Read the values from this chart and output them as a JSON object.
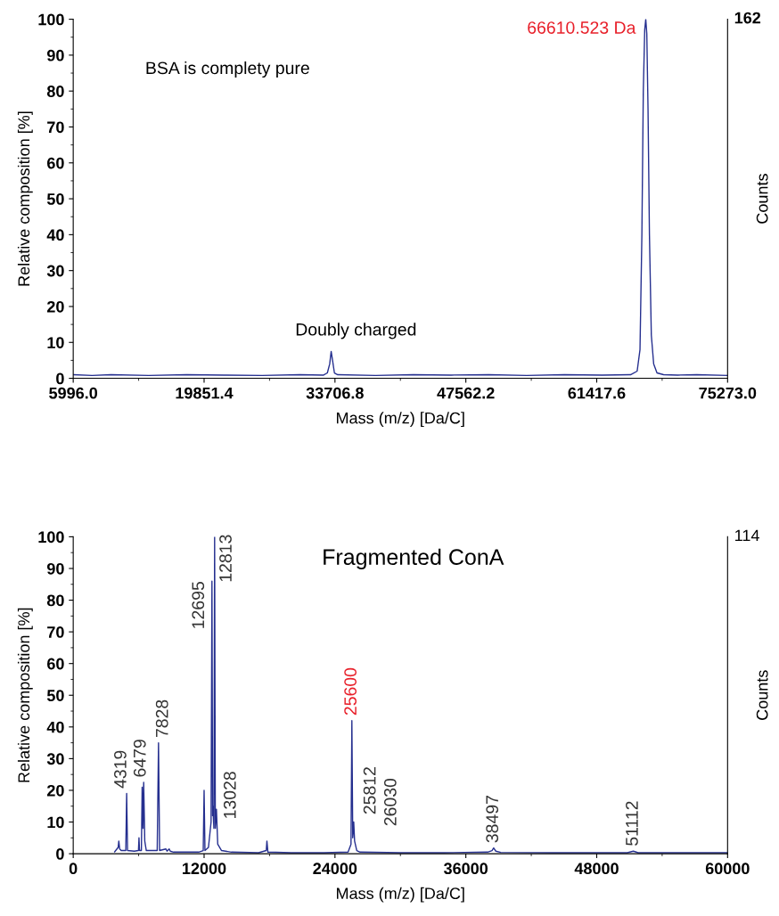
{
  "chart_data": [
    {
      "type": "line",
      "title": "BSA is complety pure",
      "xlabel": "Mass (m/z) [Da/C]",
      "ylabel": "Relative composition [%]",
      "y2label": "Counts",
      "x": [
        5996,
        8000,
        10000,
        14000,
        18000,
        22000,
        26000,
        30000,
        32500,
        32900,
        33150,
        33305,
        33450,
        33650,
        34000,
        38000,
        42000,
        46000,
        50000,
        54000,
        58000,
        62000,
        65000,
        65700,
        66000,
        66200,
        66350,
        66500,
        66610,
        66720,
        66850,
        67000,
        67200,
        67450,
        67800,
        68500,
        70000,
        72000,
        75273
      ],
      "series": [
        {
          "color": "#252f8f",
          "values": [
            1,
            0.8,
            1,
            0.8,
            1,
            0.9,
            0.8,
            1,
            0.9,
            1.5,
            4,
            7.5,
            5,
            1.5,
            1,
            0.8,
            1,
            0.9,
            1,
            0.8,
            1,
            0.9,
            1,
            2,
            8,
            40,
            80,
            97,
            100,
            96,
            75,
            40,
            12,
            4,
            1.5,
            1,
            0.9,
            1,
            0.8
          ]
        }
      ],
      "xlim": [
        5996,
        75273
      ],
      "xticks": [
        {
          "value": 5996,
          "label": "5996.0"
        },
        19851.4,
        33706.8,
        47562.2,
        61417.6,
        {
          "value": 75273,
          "label": "75273.0"
        }
      ],
      "ylim": [
        0,
        100
      ],
      "yticks": [
        0,
        10,
        20,
        30,
        40,
        50,
        60,
        70,
        80,
        90,
        100
      ],
      "annotations": [
        {
          "text": "Doubly charged",
          "x": 33305,
          "y": 7.5
        },
        {
          "text": "66610.523 Da",
          "x": 66610,
          "y": 100
        },
        "162"
      ],
      "grid": false,
      "legend": false,
      "marker": "none",
      "line_style": "solid"
    },
    {
      "type": "line",
      "title": "Fragmented ConA",
      "xlabel": "Mass (m/z) [Da/C]",
      "ylabel": "Relative composition [%]",
      "y2label": "Counts",
      "x": [
        3800,
        4120,
        4180,
        4260,
        4400,
        4820,
        4900,
        4980,
        5600,
        5980,
        6030,
        6080,
        6250,
        6320,
        6400,
        6460,
        6560,
        6700,
        7700,
        7820,
        7920,
        8500,
        8600,
        8800,
        8900,
        9200,
        11500,
        11920,
        12000,
        12080,
        12400,
        12640,
        12720,
        12780,
        12800,
        12900,
        12965,
        13030,
        13130,
        13250,
        13600,
        14500,
        17000,
        17700,
        17760,
        17850,
        20000,
        23000,
        25200,
        25470,
        25550,
        25630,
        25720,
        25800,
        26000,
        26300,
        30000,
        34000,
        38000,
        38400,
        38550,
        38750,
        39200,
        44000,
        50800,
        51360,
        51800,
        56000,
        60000
      ],
      "series": [
        {
          "color": "#252f8f",
          "values": [
            0.6,
            2,
            4,
            1.5,
            1,
            1,
            19,
            1,
            0.8,
            1,
            5,
            1,
            1,
            21,
            8,
            22.5,
            4,
            1,
            1,
            35,
            1,
            1.5,
            0.8,
            1.5,
            0.8,
            0.5,
            0.5,
            1,
            20,
            1,
            2,
            10,
            86,
            12,
            15,
            8,
            100,
            8,
            14,
            3,
            1,
            0.5,
            0.3,
            1,
            4,
            0.5,
            0.3,
            0.3,
            0.5,
            3,
            42,
            5,
            10,
            4,
            1,
            0.5,
            0.3,
            0.3,
            0.5,
            1,
            1.8,
            0.8,
            0.4,
            0.3,
            0.3,
            0.8,
            0.3,
            0.3,
            0.3
          ]
        }
      ],
      "xlim": [
        0,
        60000
      ],
      "xticks": [
        0,
        12000,
        24000,
        36000,
        48000,
        60000
      ],
      "ylim": [
        0,
        100
      ],
      "yticks": [
        0,
        10,
        20,
        30,
        40,
        50,
        60,
        70,
        80,
        90,
        100
      ],
      "annotations": [
        "114",
        {
          "text": "4319",
          "x": 4900,
          "y": 19
        },
        {
          "text": "6479",
          "x": 6460,
          "y": 22.5
        },
        {
          "text": "7828",
          "x": 7820,
          "y": 35
        },
        {
          "text": "12695",
          "x": 12720,
          "y": 86
        },
        {
          "text": "12813",
          "x": 12965,
          "y": 100
        },
        {
          "text": "13028",
          "x": 13130,
          "y": 14
        },
        {
          "text": "25600",
          "x": 25550,
          "y": 42
        },
        {
          "text": "25812",
          "x": 25720,
          "y": 10
        },
        {
          "text": "26030",
          "x": 25800,
          "y": 4
        },
        {
          "text": "38497",
          "x": 38550,
          "y": 1.8
        },
        {
          "text": "51112",
          "x": 51360,
          "y": 0.8
        }
      ],
      "grid": false,
      "legend": false,
      "marker": "none",
      "line_style": "solid"
    }
  ]
}
